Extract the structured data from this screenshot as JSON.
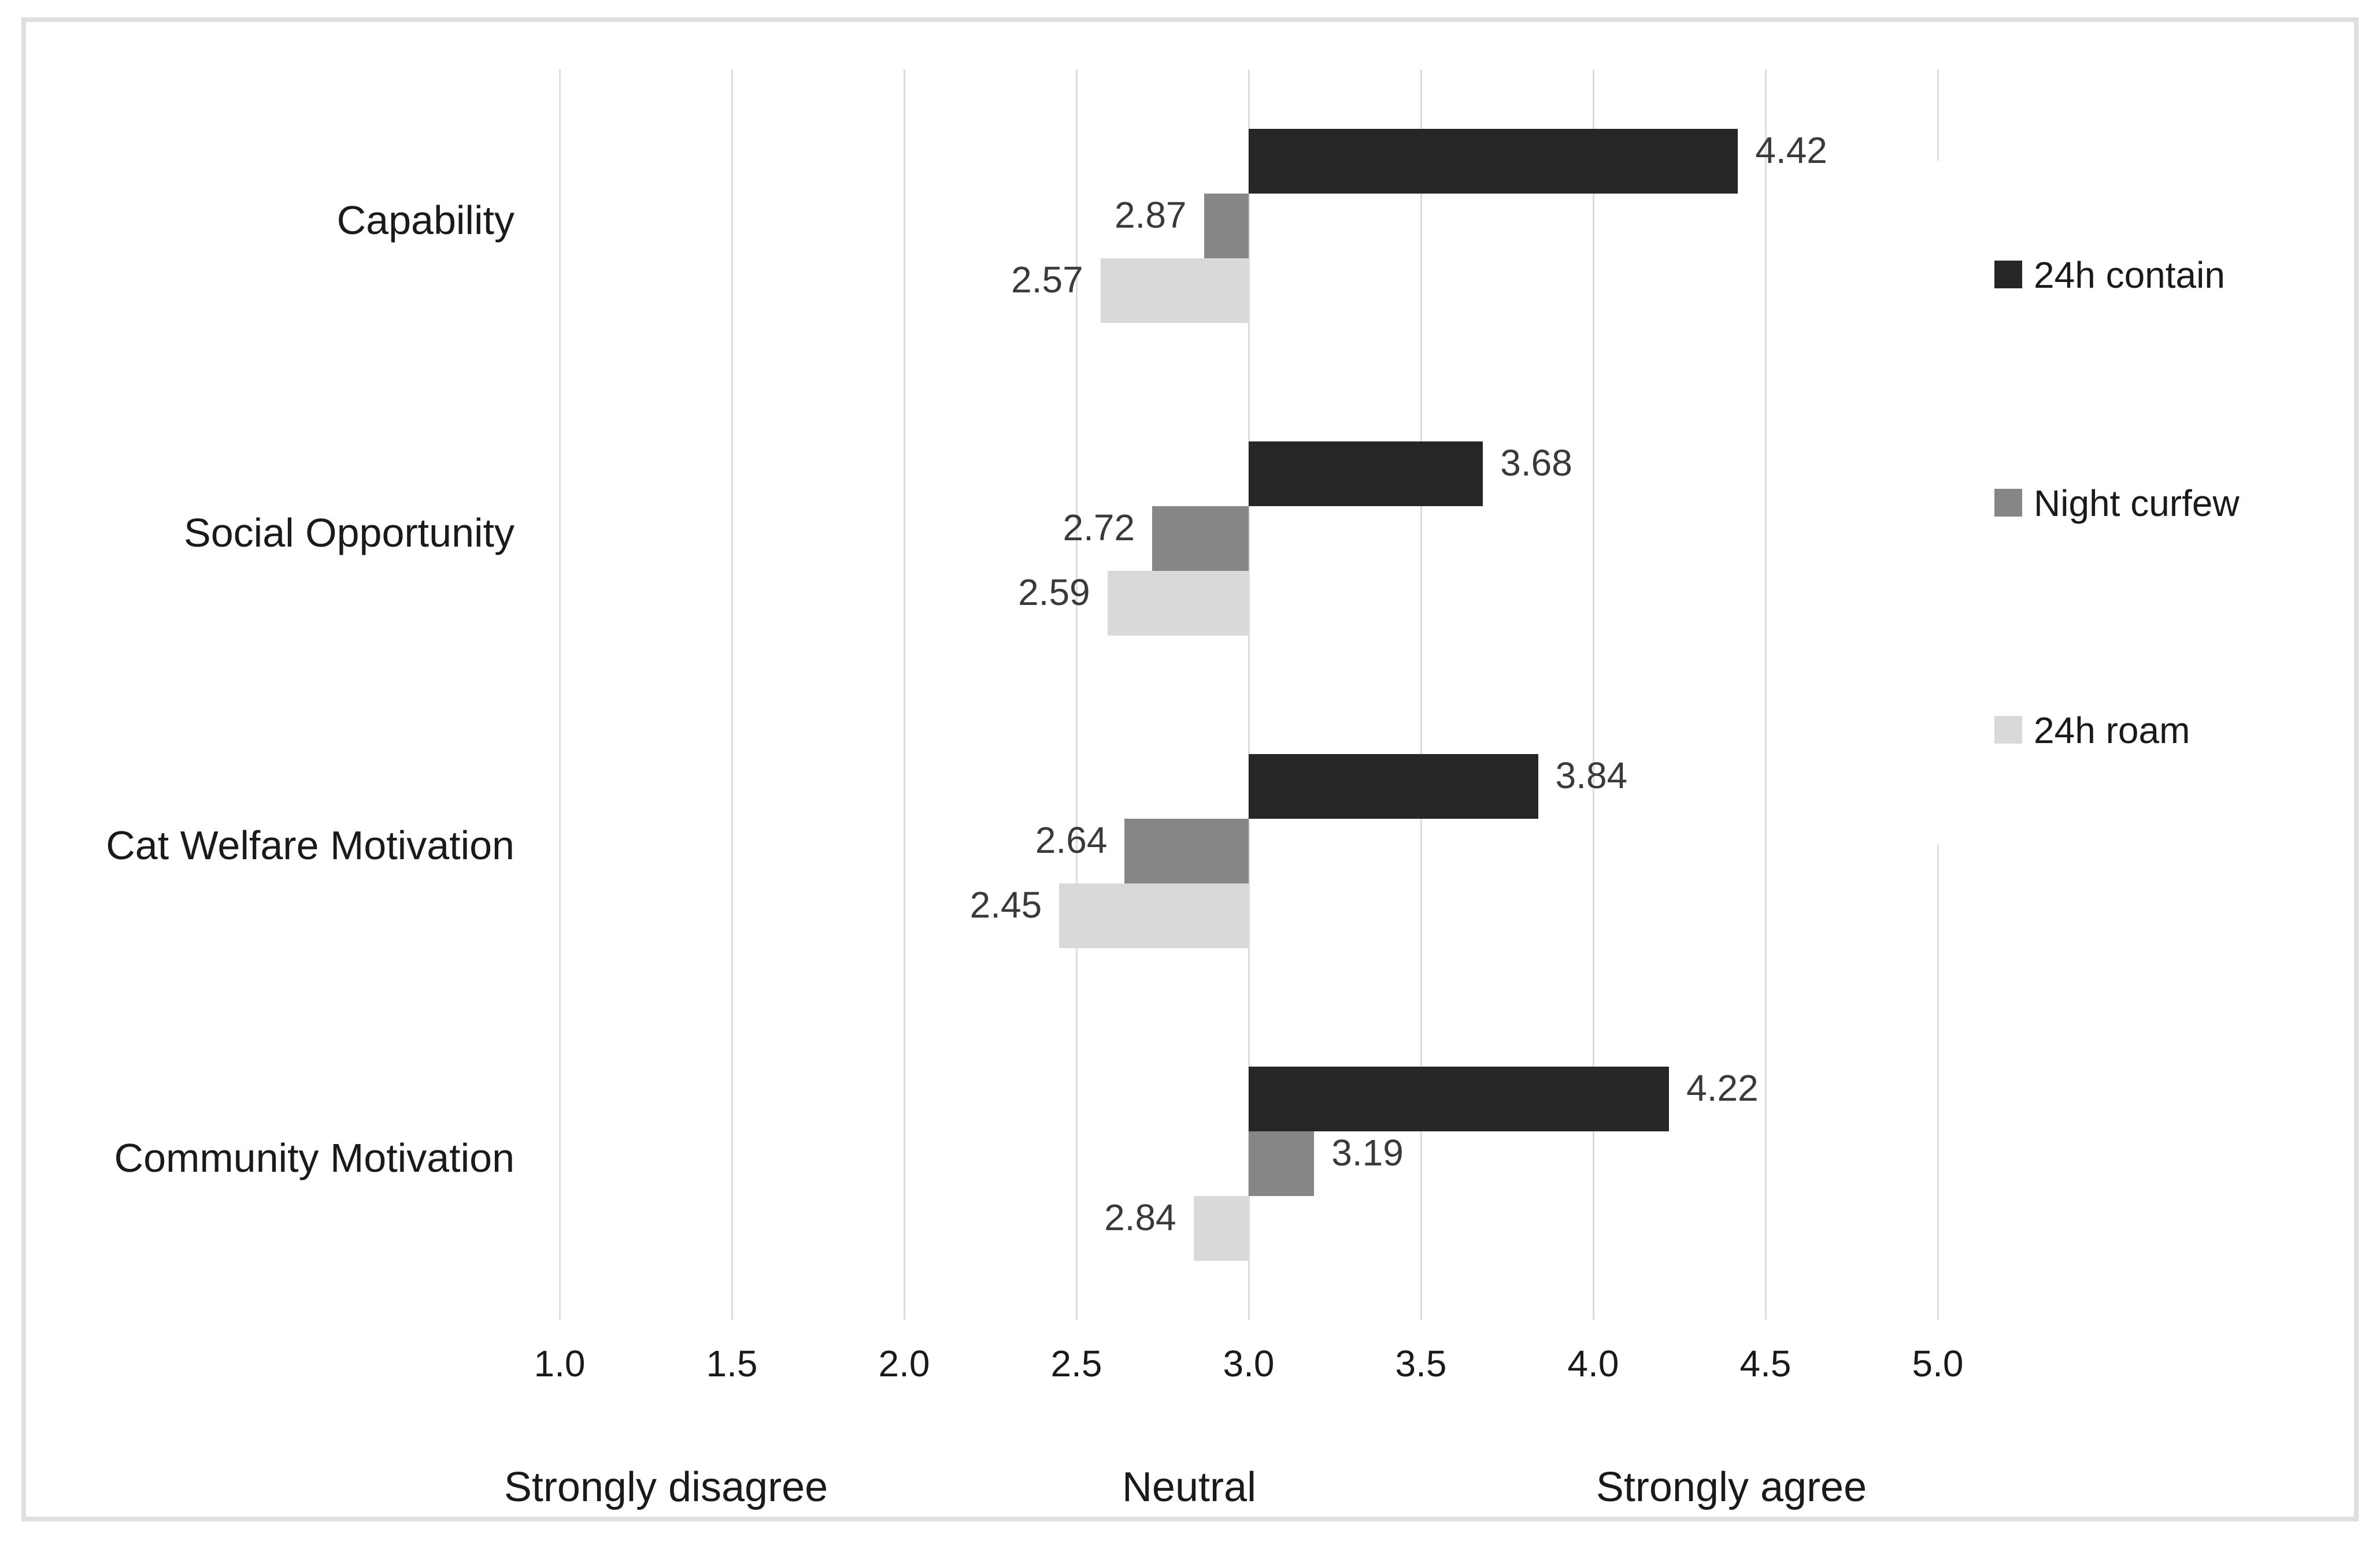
{
  "chart_data": {
    "type": "bar",
    "orientation": "horizontal",
    "title": "",
    "xlabel": "",
    "ylabel": "",
    "categories": [
      "Capability",
      "Social Opportunity",
      "Cat Welfare Motivation",
      "Community Motivation"
    ],
    "series": [
      {
        "name": "24h contain",
        "color": "#262626",
        "values": [
          4.42,
          3.68,
          3.84,
          4.22
        ]
      },
      {
        "name": "Night curfew",
        "color": "#868686",
        "values": [
          2.87,
          2.72,
          2.64,
          3.19
        ]
      },
      {
        "name": "24h roam",
        "color": "#d9d9d9",
        "values": [
          2.57,
          2.59,
          2.45,
          2.84
        ]
      }
    ],
    "baseline": 3.0,
    "x_axis": {
      "min": 1.0,
      "max": 5.0,
      "step": 0.5,
      "tick_labels": [
        "1.0",
        "1.5",
        "2.0",
        "2.5",
        "3.0",
        "3.5",
        "4.0",
        "4.5",
        "5.0"
      ]
    },
    "x_axis_captions": [
      "Strongly disagree",
      "Neutral",
      "Strongly agree"
    ],
    "data_label_decimals": 2,
    "grid": true,
    "legend": {
      "position": "right",
      "entries": [
        "24h contain",
        "Night curfew",
        "24h roam"
      ]
    },
    "colors": {
      "gridline": "#dcdcdc",
      "data_label": "#3a3a3a",
      "axis_text": "#1a1a1a",
      "figure_border": "#dfdfdf",
      "background": "#ffffff"
    }
  }
}
